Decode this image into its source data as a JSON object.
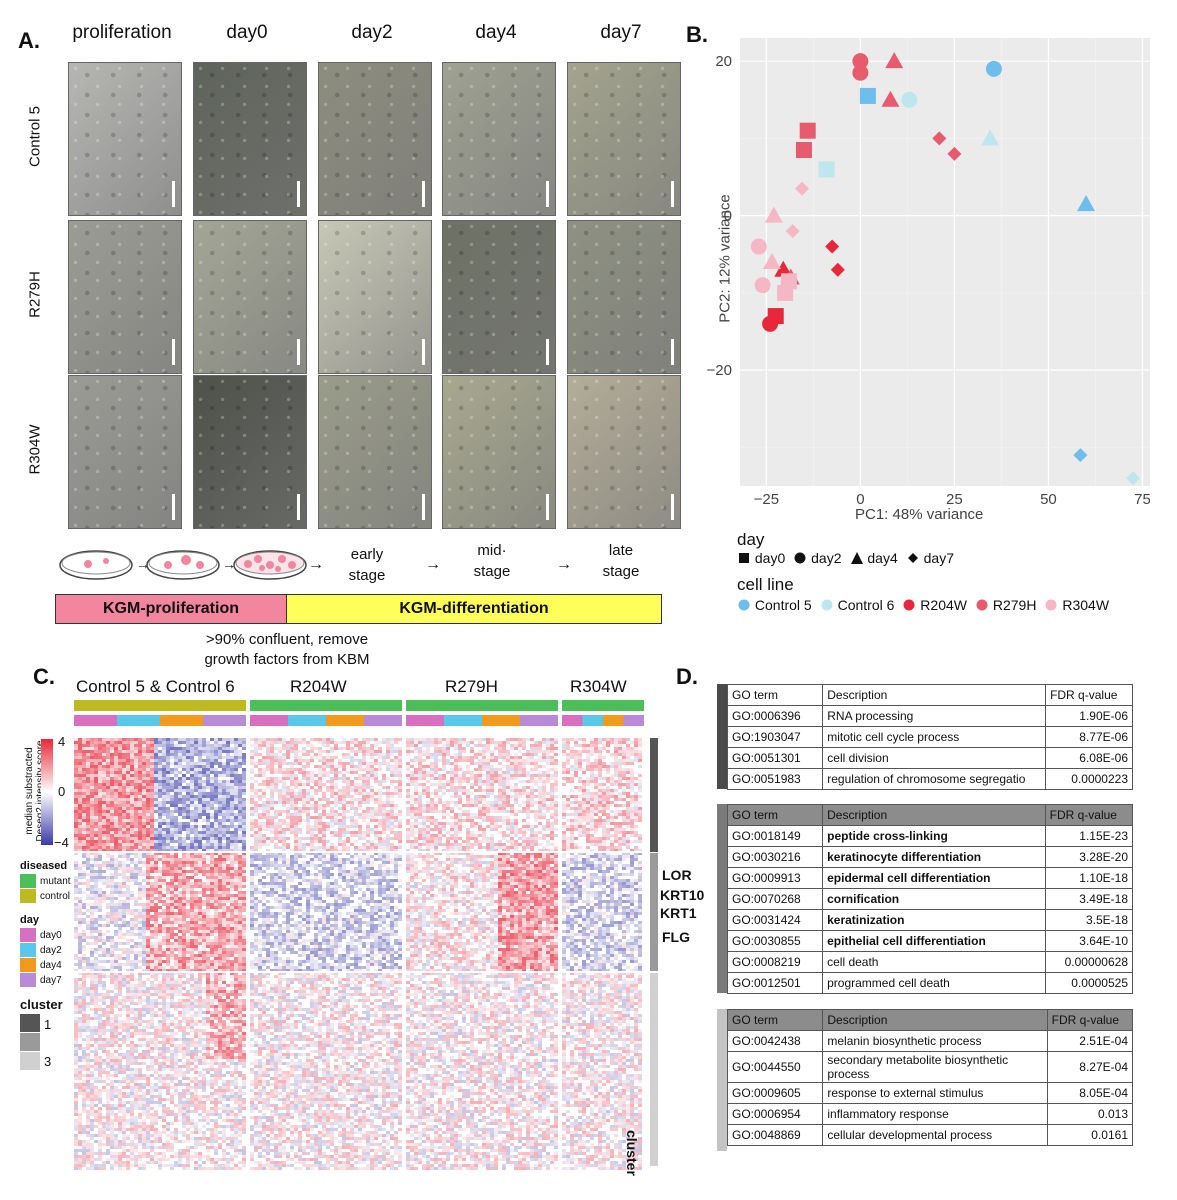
{
  "panelA": {
    "letter": "A.",
    "columns": [
      "proliferation",
      "day0",
      "day2",
      "day4",
      "day7"
    ],
    "rows": [
      "Control 5",
      "R279H",
      "R304W"
    ],
    "stages": [
      "early\nstage",
      "mid·\nstage",
      "late\nstage"
    ],
    "bar_prolif": "KGM-proliferation",
    "bar_diff": "KGM-differentiation",
    "note": ">90% confluent, remove\ngrowth factors from KBM",
    "colors": {
      "prolif": "#f2869e",
      "diff": "#ffff5a"
    }
  },
  "panelB": {
    "letter": "B.",
    "xlabel": "PC1: 48% variance",
    "ylabel": "PC2: 12% variance",
    "xticks": [
      "−25",
      "0",
      "25",
      "50",
      "75"
    ],
    "yticks": [
      "20",
      "0",
      "−20"
    ],
    "legend_day_title": "day",
    "legend_day": [
      "day0",
      "day2",
      "day4",
      "day7"
    ],
    "legend_line_title": "cell line",
    "legend_lines": [
      {
        "name": "Control 5",
        "color": "#6fbdea"
      },
      {
        "name": "Control 6",
        "color": "#bde6ee"
      },
      {
        "name": "R204W",
        "color": "#e8283a"
      },
      {
        "name": "R279H",
        "color": "#e85a6e"
      },
      {
        "name": "R304W",
        "color": "#f6b7c4"
      }
    ]
  },
  "chart_data": {
    "type": "scatter",
    "xlabel": "PC1: 48% variance",
    "ylabel": "PC2: 12% variance",
    "xlim": [
      -32,
      77
    ],
    "ylim": [
      -35,
      23
    ],
    "series": [
      {
        "name": "Control 5",
        "points": [
          {
            "x": 2,
            "y": 15.5,
            "day": "day0"
          },
          {
            "x": 35.5,
            "y": 19,
            "day": "day2"
          },
          {
            "x": 60,
            "y": 1.5,
            "day": "day4"
          },
          {
            "x": 58.5,
            "y": -31,
            "day": "day7"
          }
        ]
      },
      {
        "name": "Control 6",
        "points": [
          {
            "x": -9,
            "y": 6,
            "day": "day0"
          },
          {
            "x": 13,
            "y": 15,
            "day": "day2"
          },
          {
            "x": 34.5,
            "y": 10,
            "day": "day4"
          },
          {
            "x": 72.5,
            "y": -34,
            "day": "day7"
          }
        ]
      },
      {
        "name": "R204W",
        "points": [
          {
            "x": -22.5,
            "y": -13,
            "day": "day0"
          },
          {
            "x": -24,
            "y": -14,
            "day": "day2"
          },
          {
            "x": -20.5,
            "y": -7,
            "day": "day4"
          },
          {
            "x": -7.5,
            "y": -4,
            "day": "day7"
          },
          {
            "x": -6,
            "y": -7,
            "day": "day7"
          }
        ]
      },
      {
        "name": "R279H",
        "points": [
          {
            "x": -14,
            "y": 11,
            "day": "day0"
          },
          {
            "x": -15,
            "y": 8.5,
            "day": "day0"
          },
          {
            "x": 0,
            "y": 20,
            "day": "day2"
          },
          {
            "x": 0,
            "y": 18.5,
            "day": "day2"
          },
          {
            "x": 9,
            "y": 20,
            "day": "day4"
          },
          {
            "x": 8,
            "y": 15,
            "day": "day4"
          },
          {
            "x": -18.5,
            "y": -8,
            "day": "day4"
          },
          {
            "x": 21,
            "y": 10,
            "day": "day7"
          },
          {
            "x": 25,
            "y": 8,
            "day": "day7"
          }
        ]
      },
      {
        "name": "R304W",
        "points": [
          {
            "x": -19,
            "y": -8.5,
            "day": "day0"
          },
          {
            "x": -20,
            "y": -10,
            "day": "day0"
          },
          {
            "x": -27,
            "y": -4,
            "day": "day2"
          },
          {
            "x": -26,
            "y": -9,
            "day": "day2"
          },
          {
            "x": -23,
            "y": 0,
            "day": "day4"
          },
          {
            "x": -23.5,
            "y": -6,
            "day": "day4"
          },
          {
            "x": -15.5,
            "y": 3.5,
            "day": "day7"
          },
          {
            "x": -18,
            "y": -2,
            "day": "day7"
          }
        ]
      }
    ]
  },
  "panelC": {
    "letter": "C.",
    "groups": [
      "Control 5 & Control 6",
      "R204W",
      "R279H",
      "R304W"
    ],
    "scale_title": "median substracted\nDeseq2 intensity score",
    "scale_ticks": [
      "4",
      "0",
      "−4"
    ],
    "diseased_title": "diseased",
    "diseased_items": [
      {
        "label": "mutant",
        "color": "#4cbf5a"
      },
      {
        "label": "control",
        "color": "#bdbb1f"
      }
    ],
    "day_title": "day",
    "day_items": [
      {
        "label": "day0",
        "color": "#d96fc0"
      },
      {
        "label": "day2",
        "color": "#5bc8ea"
      },
      {
        "label": "day4",
        "color": "#f29a1c"
      },
      {
        "label": "day7",
        "color": "#b98bd6"
      }
    ],
    "cluster_title": "cluster",
    "cluster_items": [
      {
        "label": "1",
        "color": "#555555"
      },
      {
        "label": "",
        "color": "#9a9a9a"
      },
      {
        "label": "3",
        "color": "#d0d0d0"
      }
    ],
    "genes": [
      "LOR",
      "KRT10",
      "KRT1",
      "FLG"
    ],
    "cluster_side_label": "cluster"
  },
  "panelD": {
    "letter": "D.",
    "headers": [
      "GO term",
      "Description",
      "FDR q-value"
    ],
    "table1": [
      [
        "GO:0006396",
        "RNA processing",
        "1.90E-06"
      ],
      [
        "GO:1903047",
        "mitotic cell cycle process",
        "8.77E-06"
      ],
      [
        "GO:0051301",
        "cell division",
        "6.08E-06"
      ],
      [
        "GO:0051983",
        "regulation of chromosome segregatio",
        "0.0000223"
      ]
    ],
    "table2": [
      [
        "GO:0018149",
        "peptide cross-linking",
        "1.15E-23"
      ],
      [
        "GO:0030216",
        "keratinocyte differentiation",
        "3.28E-20"
      ],
      [
        "GO:0009913",
        "epidermal cell differentiation",
        "1.10E-18"
      ],
      [
        "GO:0070268",
        "cornification",
        "3.49E-18"
      ],
      [
        "GO:0031424",
        "keratinization",
        "3.5E-18"
      ],
      [
        "GO:0030855",
        "epithelial cell differentiation",
        "3.64E-10"
      ],
      [
        "GO:0008219",
        "cell death",
        "0.00000628"
      ],
      [
        "GO:0012501",
        "programmed cell death",
        "0.0000525"
      ]
    ],
    "table3": [
      [
        "GO:0042438",
        "melanin biosynthetic process",
        "2.51E-04"
      ],
      [
        "GO:0044550",
        "secondary metabolite biosynthetic process",
        "8.27E-04"
      ],
      [
        "GO:0009605",
        "response to external stimulus",
        "8.05E-04"
      ],
      [
        "GO:0006954",
        "inflammatory response",
        "0.013"
      ],
      [
        "GO:0048869",
        "cellular developmental process",
        "0.0161"
      ]
    ]
  }
}
